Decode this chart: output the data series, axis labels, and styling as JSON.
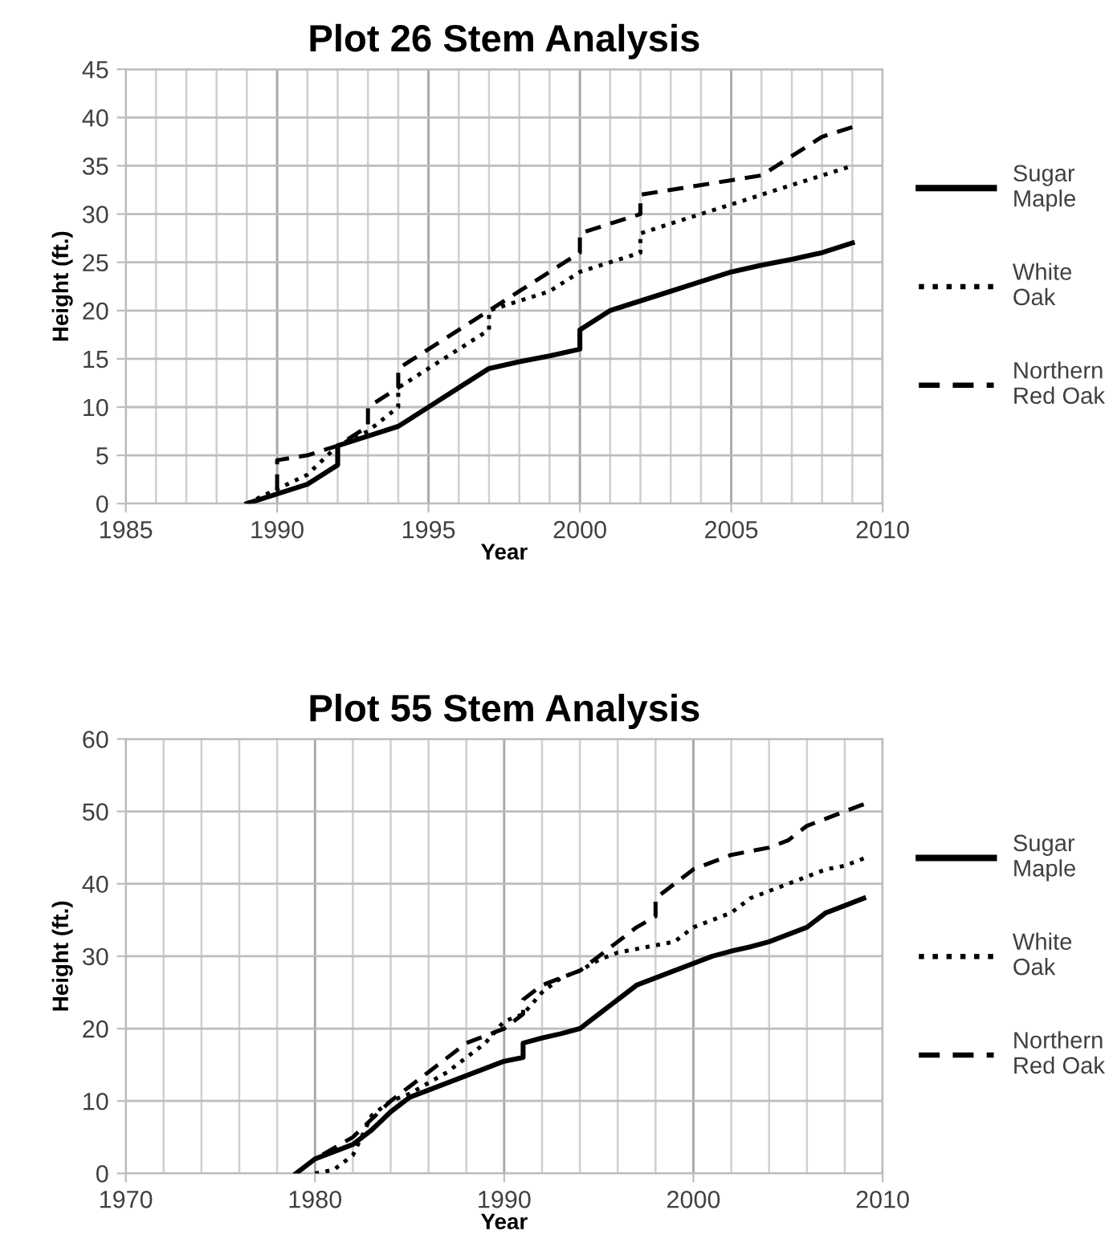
{
  "chart_data": [
    {
      "type": "line",
      "title": "Plot 26 Stem Analysis",
      "xlabel": "Year",
      "ylabel": "Height (ft.)",
      "xlim": [
        1985,
        2010
      ],
      "xticks": [
        1985,
        1990,
        1995,
        2000,
        2005,
        2010
      ],
      "ylim": [
        0,
        45
      ],
      "yticks": [
        0,
        5,
        10,
        15,
        20,
        25,
        30,
        35,
        40,
        45
      ],
      "grid": true,
      "legend": "right",
      "marker": "none",
      "series": [
        {
          "name": "Sugar Maple",
          "color": "#000000",
          "line_style": "solid",
          "x": [
            1989,
            1990,
            1991,
            1992,
            1992,
            1993,
            1994,
            1995,
            1996,
            1997,
            1998,
            1999,
            2000,
            2000,
            2001,
            2002,
            2003,
            2004,
            2005,
            2006,
            2007,
            2008,
            2009
          ],
          "values": [
            0,
            1,
            2,
            4,
            6,
            7,
            8,
            10,
            12,
            14,
            14.7,
            15.3,
            16,
            18,
            20,
            21,
            22,
            23,
            24,
            24.7,
            25.3,
            26,
            27
          ]
        },
        {
          "name": "White Oak",
          "color": "#000000",
          "line_style": "dotted",
          "x": [
            1989,
            1990,
            1991,
            1992,
            1993,
            1994,
            1994,
            1995,
            1996,
            1997,
            1997,
            1998,
            1999,
            2000,
            2001,
            2002,
            2002,
            2003,
            2004,
            2005,
            2006,
            2007,
            2008,
            2009
          ],
          "values": [
            0,
            1.5,
            3,
            6,
            7.5,
            10,
            12,
            14,
            16,
            18,
            20,
            21,
            22,
            24,
            25,
            26,
            28,
            29,
            30,
            31,
            32,
            33,
            34,
            35
          ]
        },
        {
          "name": "Northern Red Oak",
          "color": "#000000",
          "line_style": "dashed",
          "x": [
            1989,
            1990,
            1990,
            1991,
            1992,
            1993,
            1993,
            1994,
            1994,
            1995,
            1996,
            1997,
            1998,
            1999,
            2000,
            2000,
            2001,
            2002,
            2002,
            2003,
            2004,
            2005,
            2006,
            2007,
            2008,
            2009
          ],
          "values": [
            0,
            1,
            4.5,
            5,
            6,
            8,
            10,
            12,
            14,
            16,
            18,
            20,
            22,
            24,
            26,
            28,
            29,
            30,
            32,
            32.5,
            33,
            33.5,
            34,
            36,
            38,
            39
          ]
        }
      ]
    },
    {
      "type": "line",
      "title": "Plot 55 Stem Analysis",
      "xlabel": "Year",
      "ylabel": "Height (ft.)",
      "xlim": [
        1970,
        2010
      ],
      "xticks": [
        1970,
        1980,
        1990,
        2000,
        2010
      ],
      "ylim": [
        0,
        60
      ],
      "yticks": [
        0,
        10,
        20,
        30,
        40,
        50,
        60
      ],
      "grid": true,
      "legend": "right",
      "marker": "none",
      "series": [
        {
          "name": "Sugar Maple",
          "color": "#000000",
          "line_style": "solid",
          "x": [
            1979,
            1980,
            1981,
            1982,
            1983,
            1984,
            1985,
            1986,
            1987,
            1988,
            1989,
            1990,
            1991,
            1991,
            1992,
            1993,
            1994,
            1995,
            1996,
            1997,
            1998,
            1999,
            2000,
            2001,
            2002,
            2003,
            2004,
            2005,
            2006,
            2007,
            2008,
            2009
          ],
          "values": [
            0,
            2,
            3,
            4,
            6,
            8.5,
            10.5,
            11.5,
            12.5,
            13.5,
            14.5,
            15.5,
            16,
            18,
            18.7,
            19.3,
            20,
            22,
            24,
            26,
            27,
            28,
            29,
            30,
            30.7,
            31.3,
            32,
            33,
            34,
            36,
            37,
            38
          ]
        },
        {
          "name": "White Oak",
          "color": "#000000",
          "line_style": "dotted",
          "x": [
            1980,
            1981,
            1982,
            1983,
            1984,
            1985,
            1986,
            1987,
            1988,
            1989,
            1990,
            1991,
            1992,
            1993,
            1994,
            1995,
            1996,
            1997,
            1998,
            1999,
            2000,
            2001,
            2002,
            2003,
            2004,
            2005,
            2006,
            2007,
            2008,
            2009
          ],
          "values": [
            0,
            0.5,
            2.5,
            8,
            10,
            11,
            12.5,
            14,
            16,
            18,
            21,
            22,
            25,
            27,
            28,
            29.5,
            30.5,
            31,
            31.5,
            32,
            34,
            35,
            36,
            38,
            39,
            40,
            41,
            42,
            42.5,
            43.5
          ]
        },
        {
          "name": "Northern Red Oak",
          "color": "#000000",
          "line_style": "dashed",
          "x": [
            1980,
            1981,
            1982,
            1983,
            1984,
            1985,
            1986,
            1987,
            1988,
            1989,
            1990,
            1991,
            1991,
            1992,
            1993,
            1994,
            1995,
            1996,
            1997,
            1998,
            1998,
            1999,
            2000,
            2001,
            2002,
            2003,
            2004,
            2005,
            2006,
            2007,
            2008,
            2009
          ],
          "values": [
            2,
            3.5,
            5,
            7.5,
            10,
            12,
            14,
            16,
            18,
            19,
            20,
            22,
            24,
            26,
            27,
            28,
            30,
            32,
            34,
            35.5,
            38,
            40,
            42,
            43,
            44,
            44.5,
            45,
            46,
            48,
            49,
            50,
            51
          ]
        }
      ]
    }
  ]
}
